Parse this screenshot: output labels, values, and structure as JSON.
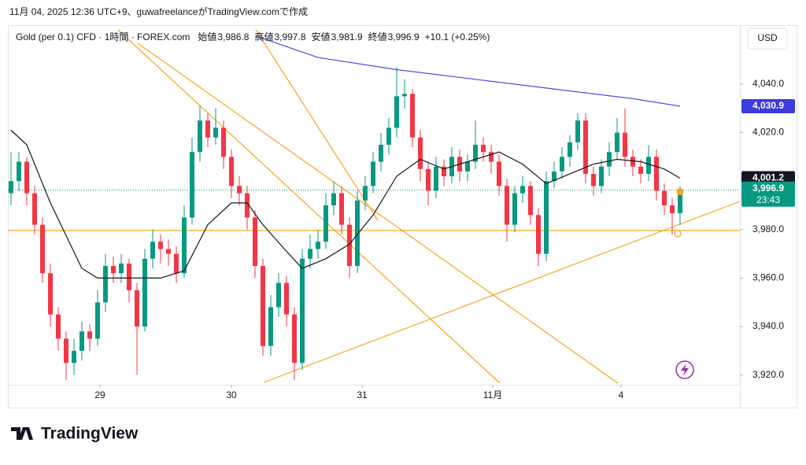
{
  "header": {
    "caption": "11月 04, 2025 12:36 UTC+9、guwafreelanceがTradingView.comで作成",
    "logo": "TradingView"
  },
  "chart_data": {
    "type": "candlestick",
    "title": "Gold (per 0.1) CFD · 1時間 · FOREX.com",
    "legend": [
      {
        "name": "始値",
        "value": "3,986.8"
      },
      {
        "name": "高値",
        "value": "3,997.8"
      },
      {
        "name": "安値",
        "value": "3,981.9"
      },
      {
        "name": "終値",
        "value": "3,996.9"
      }
    ],
    "change": "+10.1 (+0.25%)",
    "currency": "USD",
    "up_color": "#089981",
    "down_color": "#f23645",
    "candles": [
      [
        3995,
        4012,
        3990,
        4000
      ],
      [
        4000,
        4012,
        3996,
        4008
      ],
      [
        4008,
        4010,
        3990,
        3995
      ],
      [
        3995,
        3998,
        3978,
        3982
      ],
      [
        3982,
        3985,
        3958,
        3962
      ],
      [
        3962,
        3966,
        3940,
        3945
      ],
      [
        3945,
        3948,
        3930,
        3935
      ],
      [
        3935,
        3938,
        3918,
        3925
      ],
      [
        3925,
        3935,
        3920,
        3930
      ],
      [
        3930,
        3942,
        3926,
        3938
      ],
      [
        3938,
        3941,
        3930,
        3935
      ],
      [
        3935,
        3955,
        3932,
        3950
      ],
      [
        3950,
        3970,
        3946,
        3965
      ],
      [
        3965,
        3969,
        3958,
        3962
      ],
      [
        3962,
        3970,
        3958,
        3966
      ],
      [
        3966,
        3968,
        3950,
        3955
      ],
      [
        3955,
        3958,
        3920,
        3940
      ],
      [
        3940,
        3972,
        3938,
        3968
      ],
      [
        3968,
        3980,
        3964,
        3975
      ],
      [
        3975,
        3978,
        3966,
        3972
      ],
      [
        3972,
        3976,
        3965,
        3970
      ],
      [
        3970,
        3973,
        3958,
        3962
      ],
      [
        3962,
        3990,
        3960,
        3985
      ],
      [
        3985,
        4018,
        3982,
        4012
      ],
      [
        4012,
        4031,
        4008,
        4025
      ],
      [
        4025,
        4028,
        4014,
        4018
      ],
      [
        4018,
        4030,
        4015,
        4022
      ],
      [
        4022,
        4025,
        4005,
        4010
      ],
      [
        4010,
        4013,
        3993,
        3998
      ],
      [
        3998,
        4002,
        3990,
        3995
      ],
      [
        3995,
        3998,
        3980,
        3985
      ],
      [
        3985,
        3988,
        3960,
        3965
      ],
      [
        3965,
        3968,
        3928,
        3932
      ],
      [
        3932,
        3953,
        3928,
        3948
      ],
      [
        3948,
        3962,
        3944,
        3958
      ],
      [
        3958,
        3961,
        3940,
        3945
      ],
      [
        3945,
        3948,
        3918,
        3925
      ],
      [
        3925,
        3972,
        3922,
        3968
      ],
      [
        3968,
        3978,
        3964,
        3972
      ],
      [
        3972,
        3980,
        3968,
        3975
      ],
      [
        3975,
        3995,
        3972,
        3990
      ],
      [
        3990,
        4000,
        3986,
        3995
      ],
      [
        3995,
        3998,
        3978,
        3982
      ],
      [
        3982,
        3985,
        3960,
        3965
      ],
      [
        3965,
        3996,
        3962,
        3992
      ],
      [
        3992,
        4002,
        3988,
        3998
      ],
      [
        3998,
        4012,
        3995,
        4008
      ],
      [
        4008,
        4020,
        4004,
        4015
      ],
      [
        4015,
        4026,
        4011,
        4022
      ],
      [
        4022,
        4047,
        4018,
        4035
      ],
      [
        4035,
        4042,
        4030,
        4036
      ],
      [
        4036,
        4038,
        4014,
        4018
      ],
      [
        4018,
        4021,
        4000,
        4005
      ],
      [
        4005,
        4008,
        3990,
        3996
      ],
      [
        3996,
        4010,
        3993,
        4006
      ],
      [
        4006,
        4009,
        3998,
        4002
      ],
      [
        4002,
        4014,
        3999,
        4010
      ],
      [
        4010,
        4013,
        4000,
        4004
      ],
      [
        4004,
        4011,
        4000,
        4008
      ],
      [
        4008,
        4025,
        4005,
        4015
      ],
      [
        4015,
        4018,
        4008,
        4012
      ],
      [
        4012,
        4015,
        4003,
        4008
      ],
      [
        4008,
        4011,
        3994,
        3998
      ],
      [
        3998,
        4001,
        3975,
        3982
      ],
      [
        3982,
        3998,
        3979,
        3995
      ],
      [
        3995,
        4002,
        3991,
        3998
      ],
      [
        3998,
        4000,
        3982,
        3986
      ],
      [
        3986,
        3989,
        3965,
        3970
      ],
      [
        3970,
        4004,
        3967,
        4000
      ],
      [
        4000,
        4008,
        3997,
        4004
      ],
      [
        4004,
        4014,
        4001,
        4010
      ],
      [
        4010,
        4019,
        4006,
        4016
      ],
      [
        4016,
        4028,
        4013,
        4025
      ],
      [
        4025,
        4028,
        3999,
        4003
      ],
      [
        4003,
        4006,
        3994,
        3998
      ],
      [
        3998,
        4009,
        3995,
        4006
      ],
      [
        4006,
        4016,
        4002,
        4012
      ],
      [
        4012,
        4026,
        4009,
        4020
      ],
      [
        4020,
        4030,
        4006,
        4010
      ],
      [
        4010,
        4013,
        4002,
        4006
      ],
      [
        4006,
        4009,
        3999,
        4003
      ],
      [
        4003,
        4015,
        4000,
        4010
      ],
      [
        4010,
        4013,
        3992,
        3996
      ],
      [
        3996,
        3999,
        3986,
        3990
      ],
      [
        3990,
        3993,
        3978,
        3986.8
      ],
      [
        3986.8,
        3997.8,
        3981.9,
        3996.9
      ]
    ],
    "series": [
      {
        "color": "#131722",
        "x": [
          0,
          2,
          5,
          9,
          11,
          14,
          19,
          22,
          25,
          28,
          30,
          32,
          35,
          37,
          40,
          43,
          46,
          49,
          52,
          55,
          59,
          62,
          65,
          68,
          71,
          74,
          77,
          80,
          83,
          85
        ],
        "values": [
          4021,
          4015,
          3991,
          3964,
          3960,
          3960,
          3960,
          3963,
          3982,
          3991,
          3991,
          3982,
          3971,
          3964,
          3968,
          3974,
          3986,
          4002,
          4009,
          4005,
          4009,
          4012,
          4007,
          3999,
          4003,
          4007,
          4009,
          4008,
          4005,
          4001.2
        ]
      },
      {
        "color": "#4c4ce6",
        "x": [
          31,
          39,
          49,
          59,
          69,
          79,
          85
        ],
        "values": [
          4060,
          4051,
          4046,
          4042,
          4038,
          4034,
          4030.9
        ]
      }
    ],
    "price_labels": [
      {
        "value": 4030.9,
        "label": "4,030.9",
        "color": "#3b3bdb"
      },
      {
        "value": 4001.2,
        "label": "4,001.2",
        "color": "#131722"
      },
      {
        "value": 3996.9,
        "label": "3,996.9",
        "color": "#089981",
        "timer": "23:43"
      }
    ],
    "xlim": [
      -0.4,
      92.6
    ],
    "ylim": [
      3916,
      4064
    ],
    "xticks": [
      {
        "value": 11.3,
        "label": "29"
      },
      {
        "value": 28,
        "label": "30"
      },
      {
        "value": 44.6,
        "label": "31"
      },
      {
        "value": 61.2,
        "label": "11月"
      },
      {
        "value": 77.5,
        "label": "4"
      }
    ],
    "yticks": [
      {
        "value": 3920,
        "label": "3,920.0"
      },
      {
        "value": 3940,
        "label": "3,940.0"
      },
      {
        "value": 3960,
        "label": "3,960.0"
      },
      {
        "value": 3980,
        "label": "3,980.0"
      },
      {
        "value": 4020,
        "label": "4,020.0"
      },
      {
        "value": 4040,
        "label": "4,040.0"
      }
    ]
  }
}
